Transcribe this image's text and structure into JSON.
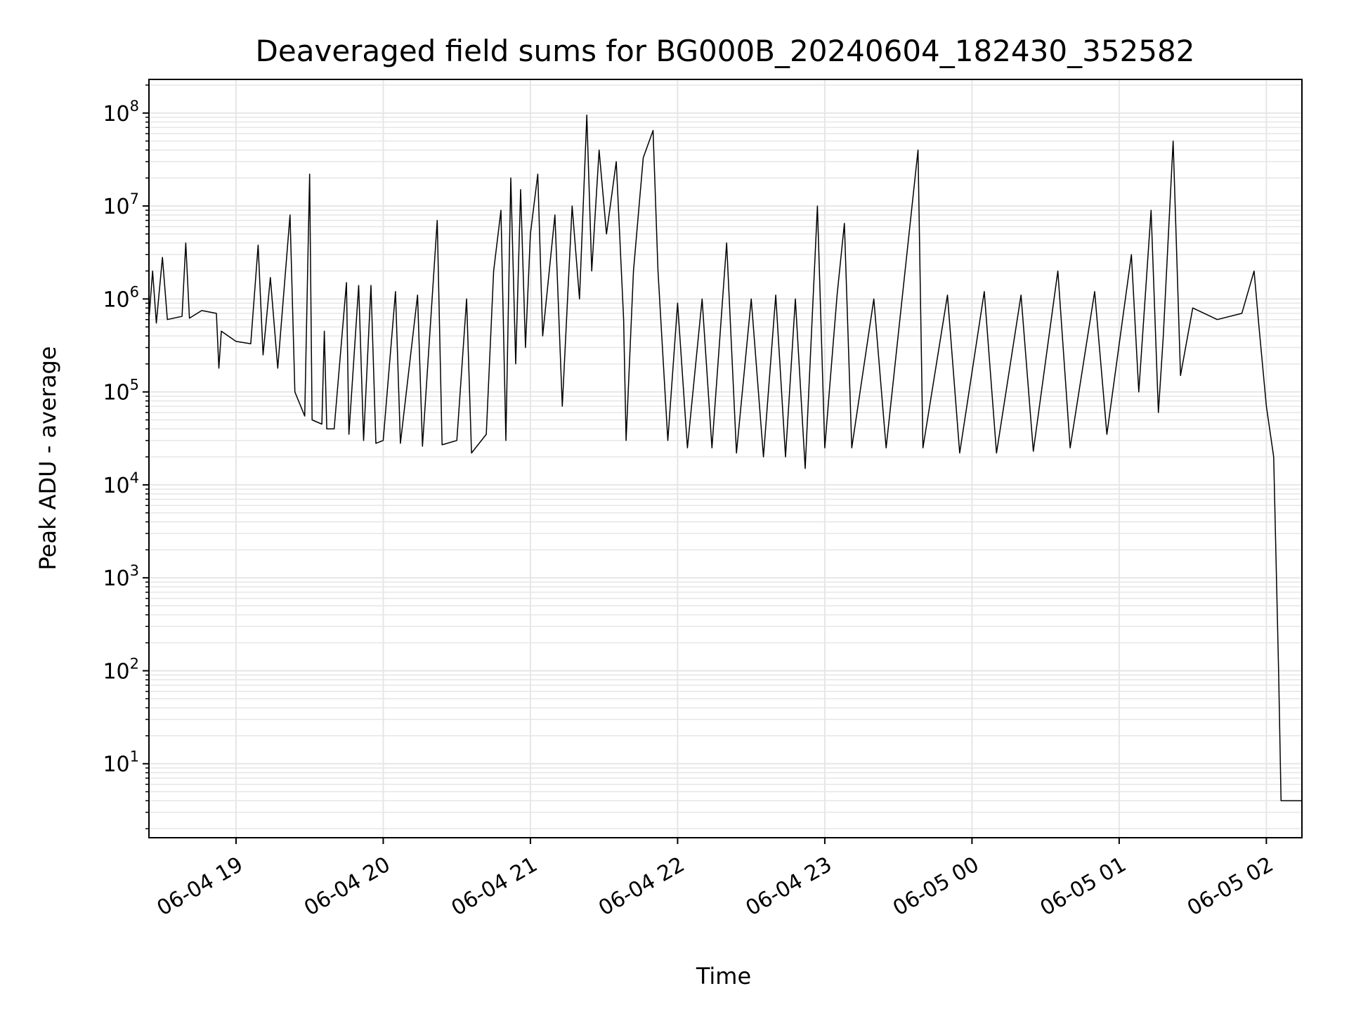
{
  "chart_data": {
    "type": "line",
    "title": "Deaveraged field sums for BG000B_20240604_182430_352582",
    "xlabel": "Time",
    "ylabel": "Peak ADU - average",
    "yscale": "log",
    "ylim": [
      1.6,
      230000000
    ],
    "xlim": [
      "2024-06-04 18:24:30",
      "2024-06-05 02:14:30"
    ],
    "x_ticks": [
      "2024-06-04 19:00",
      "2024-06-04 20:00",
      "2024-06-04 21:00",
      "2024-06-04 22:00",
      "2024-06-04 23:00",
      "2024-06-05 00:00",
      "2024-06-05 01:00",
      "2024-06-05 02:00"
    ],
    "x_tick_labels": [
      "06-04 19",
      "06-04 20",
      "06-04 21",
      "06-04 22",
      "06-04 23",
      "06-05 00",
      "06-05 01",
      "06-05 02"
    ],
    "y_tick_mantissa": "10",
    "y_tick_exponents": [
      "1",
      "2",
      "3",
      "4",
      "5",
      "6",
      "7",
      "8"
    ],
    "grid": "major and minor",
    "line_color": "#000000",
    "grid_color": "#e6e6e6",
    "series": [
      {
        "values": [
          [
            "2024-06-04 18:24:30",
            600000
          ],
          [
            "2024-06-04 18:26:00",
            2000000
          ],
          [
            "2024-06-04 18:27:30",
            550000
          ],
          [
            "2024-06-04 18:30:00",
            2800000
          ],
          [
            "2024-06-04 18:32:00",
            600000
          ],
          [
            "2024-06-04 18:38:00",
            650000
          ],
          [
            "2024-06-04 18:39:30",
            4000000
          ],
          [
            "2024-06-04 18:41:00",
            620000
          ],
          [
            "2024-06-04 18:46:00",
            750000
          ],
          [
            "2024-06-04 18:52:00",
            700000
          ],
          [
            "2024-06-04 18:53:00",
            180000
          ],
          [
            "2024-06-04 18:54:00",
            450000
          ],
          [
            "2024-06-04 19:00:00",
            350000
          ],
          [
            "2024-06-04 19:06:00",
            330000
          ],
          [
            "2024-06-04 19:09:00",
            3800000
          ],
          [
            "2024-06-04 19:11:00",
            250000
          ],
          [
            "2024-06-04 19:14:00",
            1700000
          ],
          [
            "2024-06-04 19:17:00",
            180000
          ],
          [
            "2024-06-04 19:22:00",
            8000000
          ],
          [
            "2024-06-04 19:24:00",
            100000
          ],
          [
            "2024-06-04 19:28:00",
            55000
          ],
          [
            "2024-06-04 19:29:30",
            4900000
          ],
          [
            "2024-06-04 19:30:00",
            22000000
          ],
          [
            "2024-06-04 19:31:00",
            50000
          ],
          [
            "2024-06-04 19:35:00",
            45000
          ],
          [
            "2024-06-04 19:36:00",
            450000
          ],
          [
            "2024-06-04 19:37:00",
            40000
          ],
          [
            "2024-06-04 19:40:00",
            40000
          ],
          [
            "2024-06-04 19:45:00",
            1500000
          ],
          [
            "2024-06-04 19:46:00",
            35000
          ],
          [
            "2024-06-04 19:50:00",
            1400000
          ],
          [
            "2024-06-04 19:52:00",
            30000
          ],
          [
            "2024-06-04 19:55:00",
            1400000
          ],
          [
            "2024-06-04 19:57:00",
            28000
          ],
          [
            "2024-06-04 20:00:00",
            30000
          ],
          [
            "2024-06-04 20:05:00",
            1200000
          ],
          [
            "2024-06-04 20:07:00",
            28000
          ],
          [
            "2024-06-04 20:14:00",
            1100000
          ],
          [
            "2024-06-04 20:16:00",
            26000
          ],
          [
            "2024-06-04 20:22:00",
            7000000
          ],
          [
            "2024-06-04 20:24:00",
            27000
          ],
          [
            "2024-06-04 20:30:00",
            30000
          ],
          [
            "2024-06-04 20:34:00",
            1000000
          ],
          [
            "2024-06-04 20:36:00",
            22000
          ],
          [
            "2024-06-04 20:42:00",
            35000
          ],
          [
            "2024-06-04 20:45:00",
            2000000
          ],
          [
            "2024-06-04 20:48:00",
            9000000
          ],
          [
            "2024-06-04 20:50:00",
            30000
          ],
          [
            "2024-06-04 20:52:00",
            20000000
          ],
          [
            "2024-06-04 20:54:00",
            200000
          ],
          [
            "2024-06-04 20:56:00",
            15000000
          ],
          [
            "2024-06-04 20:58:00",
            300000
          ],
          [
            "2024-06-04 21:00:00",
            5000000
          ],
          [
            "2024-06-04 21:03:00",
            22000000
          ],
          [
            "2024-06-04 21:05:00",
            400000
          ],
          [
            "2024-06-04 21:10:00",
            8000000
          ],
          [
            "2024-06-04 21:13:00",
            70000
          ],
          [
            "2024-06-04 21:17:00",
            10000000
          ],
          [
            "2024-06-04 21:20:00",
            1000000
          ],
          [
            "2024-06-04 21:23:00",
            95000000
          ],
          [
            "2024-06-04 21:25:00",
            2000000
          ],
          [
            "2024-06-04 21:28:00",
            40000000
          ],
          [
            "2024-06-04 21:31:00",
            5000000
          ],
          [
            "2024-06-04 21:35:00",
            30000000
          ],
          [
            "2024-06-04 21:38:00",
            600000
          ],
          [
            "2024-06-04 21:39:00",
            30000
          ],
          [
            "2024-06-04 21:42:00",
            2000000
          ],
          [
            "2024-06-04 21:46:00",
            33000000
          ],
          [
            "2024-06-04 21:50:00",
            65000000
          ],
          [
            "2024-06-04 21:52:00",
            2000000
          ],
          [
            "2024-06-04 21:56:00",
            30000
          ],
          [
            "2024-06-04 22:00:00",
            900000
          ],
          [
            "2024-06-04 22:04:00",
            25000
          ],
          [
            "2024-06-04 22:10:00",
            1000000
          ],
          [
            "2024-06-04 22:14:00",
            25000
          ],
          [
            "2024-06-04 22:20:00",
            4000000
          ],
          [
            "2024-06-04 22:24:00",
            22000
          ],
          [
            "2024-06-04 22:30:00",
            1000000
          ],
          [
            "2024-06-04 22:35:00",
            20000
          ],
          [
            "2024-06-04 22:40:00",
            1100000
          ],
          [
            "2024-06-04 22:44:00",
            20000
          ],
          [
            "2024-06-04 22:48:00",
            1000000
          ],
          [
            "2024-06-04 22:52:00",
            15000
          ],
          [
            "2024-06-04 22:57:00",
            10000000
          ],
          [
            "2024-06-04 23:00:00",
            25000
          ],
          [
            "2024-06-04 23:05:00",
            1100000
          ],
          [
            "2024-06-04 23:08:00",
            6500000
          ],
          [
            "2024-06-04 23:11:00",
            25000
          ],
          [
            "2024-06-04 23:20:00",
            1000000
          ],
          [
            "2024-06-04 23:25:00",
            25000
          ],
          [
            "2024-06-04 23:38:00",
            40000000
          ],
          [
            "2024-06-04 23:40:00",
            25000
          ],
          [
            "2024-06-04 23:50:00",
            1100000
          ],
          [
            "2024-06-04 23:55:00",
            22000
          ],
          [
            "2024-06-05 00:05:00",
            1200000
          ],
          [
            "2024-06-05 00:10:00",
            22000
          ],
          [
            "2024-06-05 00:20:00",
            1100000
          ],
          [
            "2024-06-05 00:25:00",
            23000
          ],
          [
            "2024-06-05 00:35:00",
            2000000
          ],
          [
            "2024-06-05 00:40:00",
            25000
          ],
          [
            "2024-06-05 00:50:00",
            1200000
          ],
          [
            "2024-06-05 00:55:00",
            35000
          ],
          [
            "2024-06-05 01:05:00",
            3000000
          ],
          [
            "2024-06-05 01:08:00",
            100000
          ],
          [
            "2024-06-05 01:13:00",
            9000000
          ],
          [
            "2024-06-05 01:16:00",
            60000
          ],
          [
            "2024-06-05 01:18:00",
            400000
          ],
          [
            "2024-06-05 01:22:00",
            50000000
          ],
          [
            "2024-06-05 01:25:00",
            150000
          ],
          [
            "2024-06-05 01:30:00",
            800000
          ],
          [
            "2024-06-05 01:40:00",
            600000
          ],
          [
            "2024-06-05 01:50:00",
            700000
          ],
          [
            "2024-06-05 01:55:00",
            2000000
          ],
          [
            "2024-06-05 01:57:00",
            500000
          ],
          [
            "2024-06-05 02:00:00",
            70000
          ],
          [
            "2024-06-05 02:03:00",
            20000
          ],
          [
            "2024-06-05 02:05:00",
            100
          ],
          [
            "2024-06-05 02:06:00",
            4
          ],
          [
            "2024-06-05 02:14:30",
            4
          ]
        ]
      }
    ]
  }
}
